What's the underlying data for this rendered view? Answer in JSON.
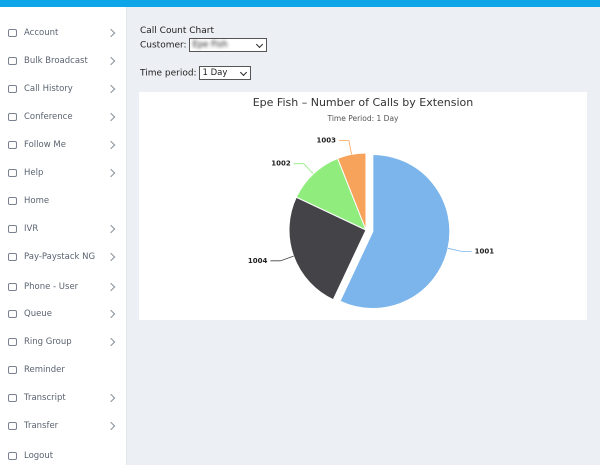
{
  "sidebar": {
    "items": [
      {
        "label": "Account",
        "submenu": true
      },
      {
        "label": "Bulk Broadcast",
        "submenu": true
      },
      {
        "label": "Call History",
        "submenu": true
      },
      {
        "label": "Conference",
        "submenu": true
      },
      {
        "label": "Follow Me",
        "submenu": true
      },
      {
        "label": "Help",
        "submenu": true
      },
      {
        "label": "Home",
        "submenu": false
      },
      {
        "label": "IVR",
        "submenu": true
      },
      {
        "label": "Pay-Paystack NG",
        "submenu": true
      },
      {
        "label": "Phone - User",
        "submenu": true
      },
      {
        "label": "Queue",
        "submenu": true
      },
      {
        "label": "Ring Group",
        "submenu": true
      },
      {
        "label": "Reminder",
        "submenu": false
      },
      {
        "label": "Transcript",
        "submenu": true
      },
      {
        "label": "Transfer",
        "submenu": true
      },
      {
        "label": "Logout",
        "submenu": false
      }
    ]
  },
  "form": {
    "heading": "Call Count Chart",
    "customer_label": "Customer:",
    "customer_value": "Epe Fish",
    "period_label": "Time period:",
    "period_value": "1 Day"
  },
  "chart_data": {
    "type": "pie",
    "title": "Epe Fish – Number of Calls by Extension",
    "subtitle": "Time Period: 1 Day",
    "categories": [
      "1001",
      "1004",
      "1002",
      "1003"
    ],
    "values": [
      57,
      25,
      12,
      6
    ],
    "colors": [
      "#7cb5ec",
      "#434348",
      "#90ed7d",
      "#f7a35c"
    ]
  }
}
